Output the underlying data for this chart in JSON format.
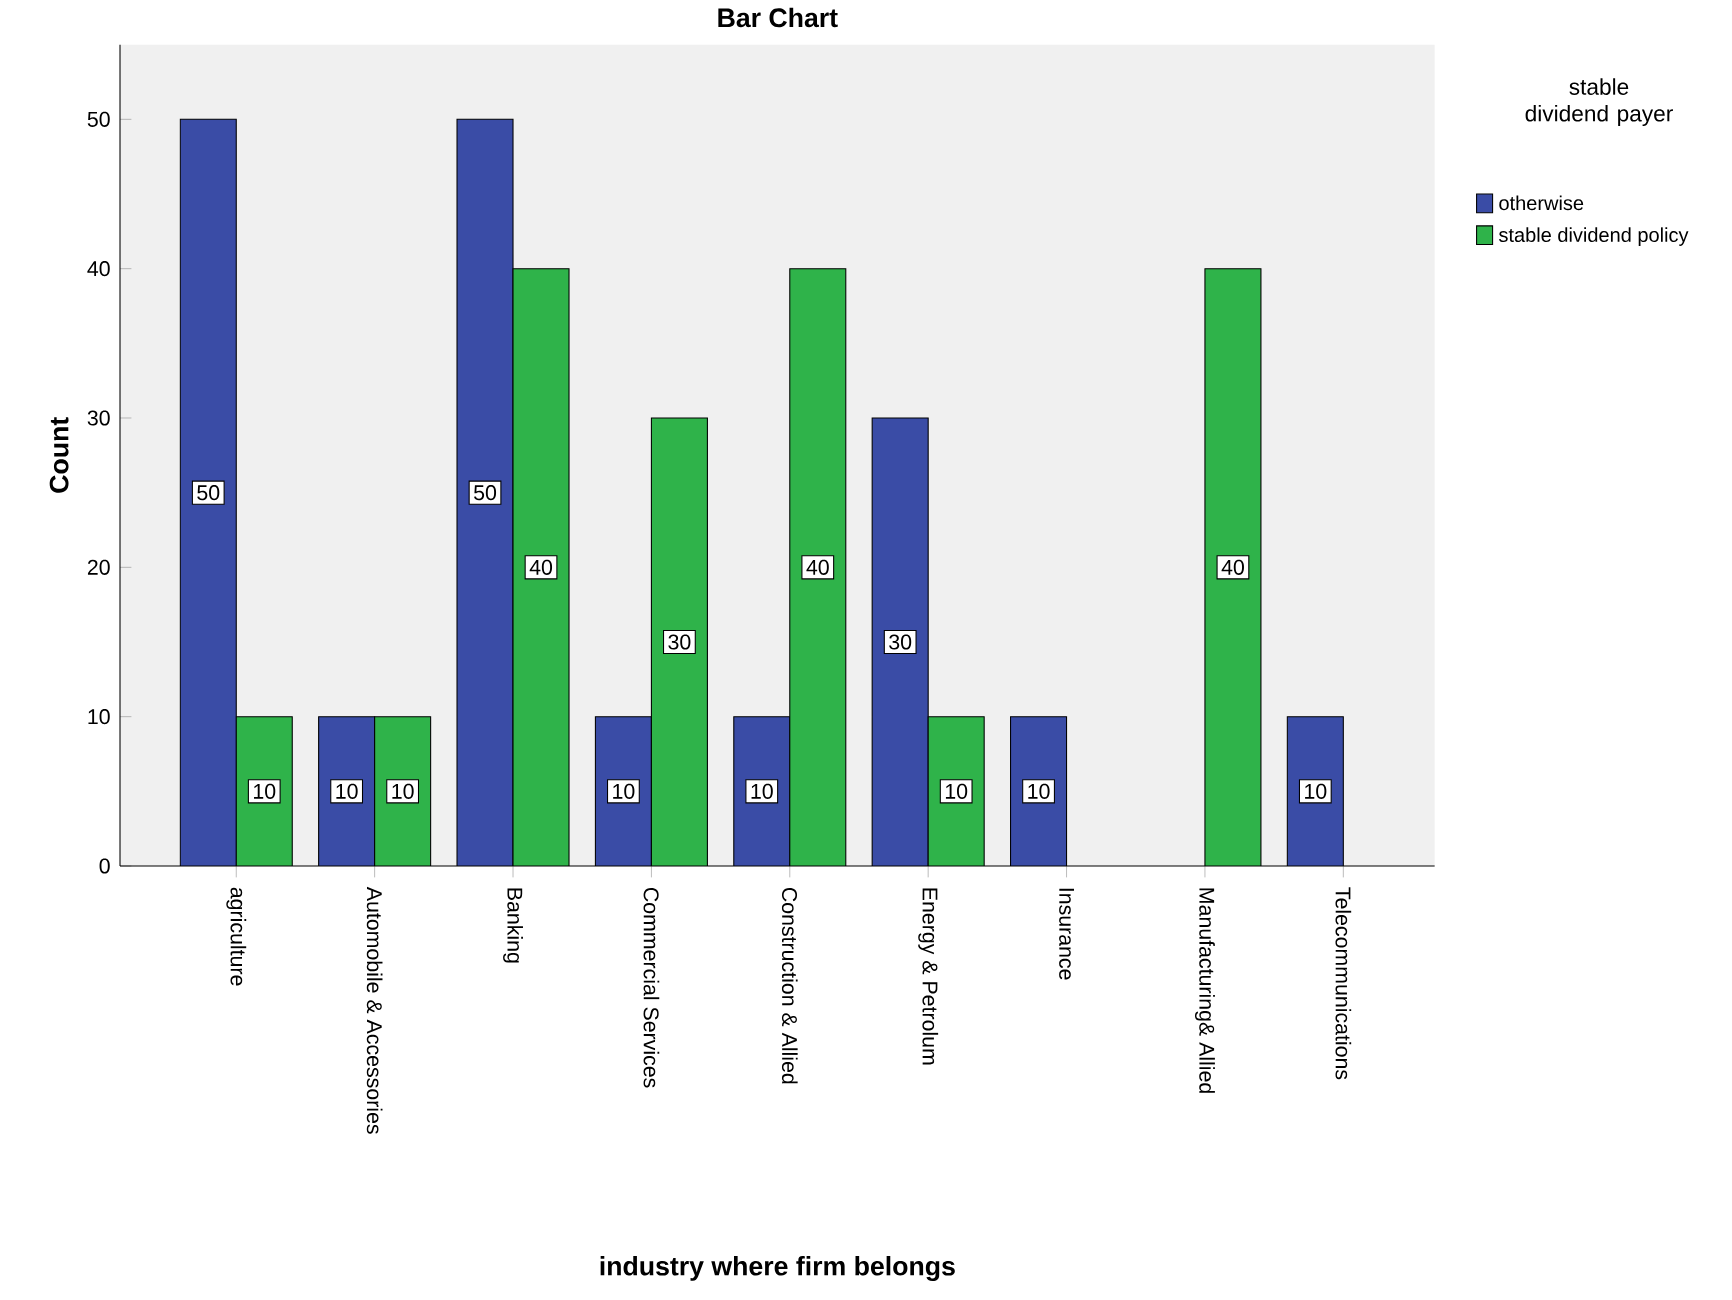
{
  "chart_data": {
    "type": "bar",
    "title": "Bar Chart",
    "xlabel": "industry where firm belongs",
    "ylabel": "Count",
    "legend_title": "stable dividend payer",
    "legend": "top right",
    "data_labels": true,
    "categories": [
      "agriculture",
      "Automobile & Accessories",
      "Banking",
      "Commercial Services",
      "Construction & Allied",
      "Energy & Petrolum",
      "Insurance",
      "Manufacturing& Allied",
      "Telecommunications"
    ],
    "series": [
      {
        "name": "otherwise",
        "color": "#3a4ca6",
        "values": [
          50,
          10,
          50,
          10,
          10,
          30,
          10,
          null,
          10
        ]
      },
      {
        "name": "stable dividend policy",
        "color": "#2fb34a",
        "values": [
          10,
          10,
          40,
          30,
          40,
          10,
          null,
          40,
          null
        ]
      }
    ],
    "ylim": [
      0,
      55
    ],
    "yticks": [
      0,
      10,
      20,
      30,
      40,
      50
    ]
  }
}
